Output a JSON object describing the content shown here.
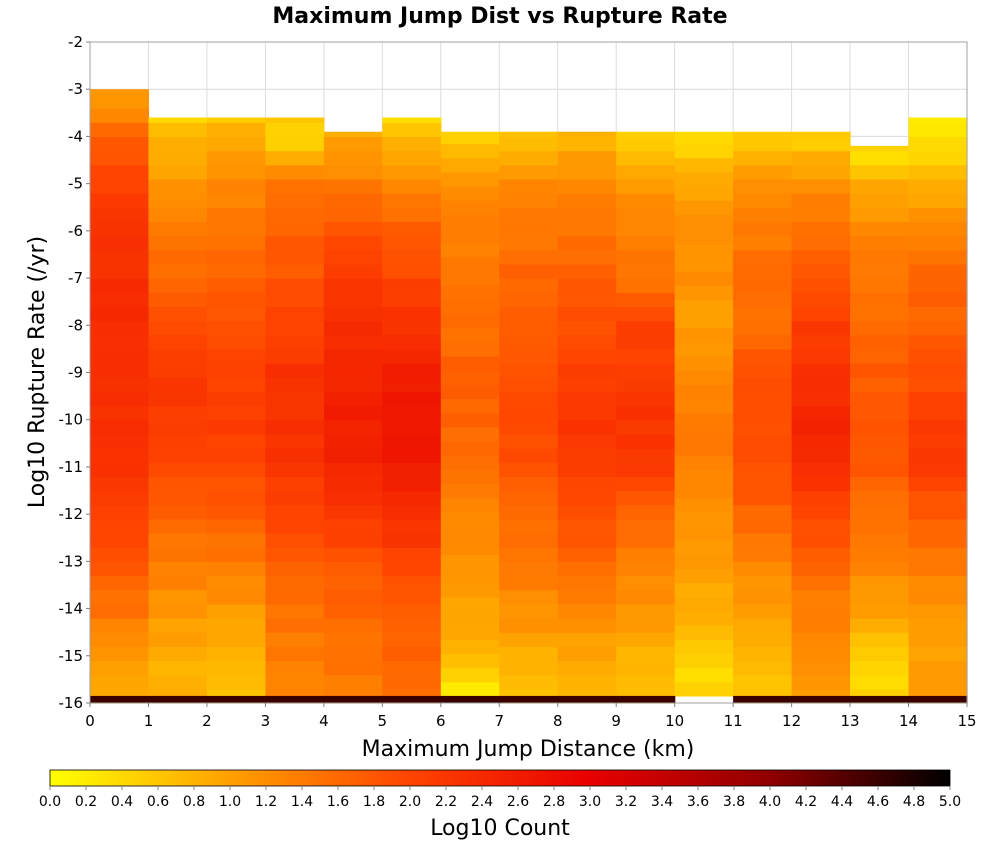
{
  "chart_data": {
    "type": "heatmap",
    "title": "Maximum Jump Dist vs Rupture Rate",
    "xlabel": "Maximum Jump Distance (km)",
    "ylabel": "Log10 Rupture Rate (/yr)",
    "xlim": [
      0,
      15
    ],
    "ylim": [
      -16,
      -2
    ],
    "x_ticks": [
      0,
      1,
      2,
      3,
      4,
      5,
      6,
      7,
      8,
      9,
      10,
      11,
      12,
      13,
      14,
      15
    ],
    "y_ticks": [
      -2,
      -3,
      -4,
      -5,
      -6,
      -7,
      -8,
      -9,
      -10,
      -11,
      -12,
      -13,
      -14,
      -15,
      -16
    ],
    "x_bin_width": 1,
    "y_bin_width": 0.3,
    "grid": true,
    "colorbar": {
      "label": "Log10 Count",
      "min": 0.0,
      "max": 5.0,
      "ticks": [
        "0.0",
        "0.2",
        "0.4",
        "0.6",
        "0.8",
        "1.0",
        "1.2",
        "1.4",
        "1.6",
        "1.8",
        "2.0",
        "2.2",
        "2.4",
        "2.6",
        "2.8",
        "3.0",
        "3.2",
        "3.4",
        "3.6",
        "3.8",
        "4.0",
        "4.2",
        "4.4",
        "4.6",
        "4.8",
        "5.0"
      ],
      "colormap": [
        "#ffff00",
        "#ffa000",
        "#ff4400",
        "#e80000",
        "#900000",
        "#000000"
      ]
    },
    "bottom_row": {
      "y_range": [
        -16,
        -15.85
      ],
      "values": [
        4.6,
        4.6,
        4.6,
        4.6,
        4.6,
        4.6,
        4.6,
        4.6,
        4.6,
        4.6,
        null,
        4.6,
        4.6,
        4.6,
        4.6
      ]
    },
    "columns": [
      {
        "x": [
          0,
          1
        ],
        "y_min": -16,
        "y_max": -3,
        "anchors": [
          [
            -15.5,
            1.0
          ],
          [
            -14,
            1.5
          ],
          [
            -12,
            2.1
          ],
          [
            -10,
            2.3
          ],
          [
            -8,
            2.35
          ],
          [
            -6,
            2.25
          ],
          [
            -5,
            2.05
          ],
          [
            -4,
            1.7
          ],
          [
            -3.3,
            1.1
          ]
        ]
      },
      {
        "x": [
          1,
          2
        ],
        "y_min": -16,
        "y_max": -3.6,
        "anchors": [
          [
            -15.5,
            0.8
          ],
          [
            -14,
            1.1
          ],
          [
            -13,
            1.4
          ],
          [
            -12,
            1.7
          ],
          [
            -11,
            2.0
          ],
          [
            -10,
            2.15
          ],
          [
            -9,
            2.15
          ],
          [
            -8,
            1.95
          ],
          [
            -7,
            1.6
          ],
          [
            -6,
            1.4
          ],
          [
            -5,
            1.1
          ],
          [
            -4,
            0.8
          ],
          [
            -3.6,
            0.4
          ]
        ]
      },
      {
        "x": [
          2,
          3
        ],
        "y_min": -16,
        "y_max": -3.6,
        "anchors": [
          [
            -15.5,
            0.7
          ],
          [
            -14,
            1.1
          ],
          [
            -13,
            1.4
          ],
          [
            -12,
            1.7
          ],
          [
            -11,
            1.95
          ],
          [
            -10,
            2.1
          ],
          [
            -9,
            2.0
          ],
          [
            -8,
            1.85
          ],
          [
            -7,
            1.7
          ],
          [
            -6,
            1.5
          ],
          [
            -5,
            1.3
          ],
          [
            -4,
            0.9
          ],
          [
            -3.6,
            0.5
          ]
        ]
      },
      {
        "x": [
          3,
          4
        ],
        "y_min": -16,
        "y_max": -3.6,
        "anchors": [
          [
            -15.5,
            1.3
          ],
          [
            -14,
            1.55
          ],
          [
            -13,
            1.7
          ],
          [
            -12,
            2.0
          ],
          [
            -11,
            2.2
          ],
          [
            -10,
            2.3
          ],
          [
            -9,
            2.25
          ],
          [
            -8,
            2.05
          ],
          [
            -7,
            1.8
          ],
          [
            -6,
            1.7
          ],
          [
            -5,
            1.4
          ],
          [
            -4,
            0.4
          ],
          [
            -3.6,
            0.6
          ]
        ]
      },
      {
        "x": [
          4,
          5
        ],
        "y_min": -16,
        "y_max": -3.9,
        "anchors": [
          [
            -15.5,
            1.4
          ],
          [
            -14,
            1.65
          ],
          [
            -13,
            1.85
          ],
          [
            -12,
            2.2
          ],
          [
            -11,
            2.45
          ],
          [
            -10,
            2.55
          ],
          [
            -9,
            2.5
          ],
          [
            -8,
            2.3
          ],
          [
            -7,
            2.15
          ],
          [
            -6,
            1.85
          ],
          [
            -5,
            1.4
          ],
          [
            -4,
            0.9
          ]
        ]
      },
      {
        "x": [
          5,
          6
        ],
        "y_min": -16,
        "y_max": -3.6,
        "anchors": [
          [
            -15.5,
            1.55
          ],
          [
            -14,
            1.8
          ],
          [
            -13,
            2.0
          ],
          [
            -12,
            2.35
          ],
          [
            -11,
            2.55
          ],
          [
            -10,
            2.75
          ],
          [
            -9,
            2.6
          ],
          [
            -8,
            2.3
          ],
          [
            -7,
            2.0
          ],
          [
            -6,
            1.7
          ],
          [
            -5,
            1.3
          ],
          [
            -4,
            0.7
          ],
          [
            -3.6,
            0.2
          ]
        ]
      },
      {
        "x": [
          6,
          7
        ],
        "y_min": -15.85,
        "y_max": -3.9,
        "anchors": [
          [
            -15.7,
            0.2
          ],
          [
            -15,
            0.75
          ],
          [
            -14,
            0.95
          ],
          [
            -13,
            1.15
          ],
          [
            -12,
            1.3
          ],
          [
            -11,
            1.5
          ],
          [
            -10,
            1.65
          ],
          [
            -9,
            1.7
          ],
          [
            -8,
            1.55
          ],
          [
            -7,
            1.45
          ],
          [
            -6,
            1.4
          ],
          [
            -5,
            1.15
          ],
          [
            -4.5,
            0.8
          ],
          [
            -4,
            0.4
          ]
        ]
      },
      {
        "x": [
          7,
          8
        ],
        "y_min": -16,
        "y_max": -3.9,
        "anchors": [
          [
            -15.5,
            0.7
          ],
          [
            -14,
            1.2
          ],
          [
            -13,
            1.45
          ],
          [
            -12,
            1.65
          ],
          [
            -11,
            1.85
          ],
          [
            -10,
            2.0
          ],
          [
            -9,
            1.9
          ],
          [
            -8,
            1.75
          ],
          [
            -7,
            1.65
          ],
          [
            -6,
            1.45
          ],
          [
            -5,
            1.2
          ],
          [
            -4,
            0.6
          ]
        ]
      },
      {
        "x": [
          8,
          9
        ],
        "y_min": -16,
        "y_max": -3.9,
        "anchors": [
          [
            -15.5,
            0.8
          ],
          [
            -14,
            1.25
          ],
          [
            -13,
            1.6
          ],
          [
            -12,
            1.9
          ],
          [
            -11,
            2.15
          ],
          [
            -10,
            2.2
          ],
          [
            -9,
            2.1
          ],
          [
            -8,
            1.9
          ],
          [
            -7,
            1.75
          ],
          [
            -6,
            1.45
          ],
          [
            -5,
            1.25
          ],
          [
            -4,
            0.8
          ]
        ]
      },
      {
        "x": [
          9,
          10
        ],
        "y_min": -16,
        "y_max": -3.9,
        "anchors": [
          [
            -15.5,
            0.7
          ],
          [
            -14,
            1.1
          ],
          [
            -13,
            1.4
          ],
          [
            -12,
            1.7
          ],
          [
            -11,
            2.1
          ],
          [
            -10,
            2.25
          ],
          [
            -9,
            2.1
          ],
          [
            -8,
            2.05
          ],
          [
            -7,
            1.5
          ],
          [
            -6,
            1.3
          ],
          [
            -5,
            1.1
          ],
          [
            -4,
            0.5
          ]
        ]
      },
      {
        "x": [
          10,
          11
        ],
        "y_min": -15.85,
        "y_max": -3.9,
        "anchors": [
          [
            -15.5,
            0.4
          ],
          [
            -14.5,
            0.7
          ],
          [
            -14,
            0.85
          ],
          [
            -13,
            1.05
          ],
          [
            -12,
            1.2
          ],
          [
            -11,
            1.35
          ],
          [
            -10,
            1.4
          ],
          [
            -9,
            1.3
          ],
          [
            -8,
            1.05
          ],
          [
            -7,
            1.15
          ],
          [
            -6,
            1.2
          ],
          [
            -5,
            0.95
          ],
          [
            -4.5,
            0.6
          ],
          [
            -4,
            0.3
          ]
        ]
      },
      {
        "x": [
          11,
          12
        ],
        "y_min": -16,
        "y_max": -3.9,
        "anchors": [
          [
            -15.5,
            0.6
          ],
          [
            -14,
            1.0
          ],
          [
            -13,
            1.3
          ],
          [
            -12,
            1.65
          ],
          [
            -11,
            1.9
          ],
          [
            -10,
            1.95
          ],
          [
            -9,
            1.8
          ],
          [
            -8,
            1.6
          ],
          [
            -7,
            1.55
          ],
          [
            -6,
            1.4
          ],
          [
            -5,
            1.2
          ],
          [
            -4,
            0.5
          ]
        ]
      },
      {
        "x": [
          12,
          13
        ],
        "y_min": -16,
        "y_max": -3.9,
        "anchors": [
          [
            -15.5,
            1.1
          ],
          [
            -14,
            1.35
          ],
          [
            -13,
            1.65
          ],
          [
            -12,
            2.05
          ],
          [
            -11,
            2.35
          ],
          [
            -10,
            2.45
          ],
          [
            -9,
            2.3
          ],
          [
            -8,
            2.1
          ],
          [
            -7,
            1.75
          ],
          [
            -6,
            1.55
          ],
          [
            -5,
            1.2
          ],
          [
            -4,
            0.5
          ]
        ]
      },
      {
        "x": [
          13,
          14
        ],
        "y_min": -16,
        "y_max": -4.2,
        "anchors": [
          [
            -15.5,
            0.4
          ],
          [
            -14,
            1.0
          ],
          [
            -13,
            1.3
          ],
          [
            -12,
            1.55
          ],
          [
            -11,
            1.75
          ],
          [
            -10,
            1.85
          ],
          [
            -9,
            1.75
          ],
          [
            -8,
            1.55
          ],
          [
            -7,
            1.45
          ],
          [
            -6,
            1.25
          ],
          [
            -5,
            0.9
          ],
          [
            -4.5,
            0.4
          ]
        ]
      },
      {
        "x": [
          14,
          15
        ],
        "y_min": -16,
        "y_max": -3.6,
        "anchors": [
          [
            -15.5,
            1.0
          ],
          [
            -14,
            1.1
          ],
          [
            -13,
            1.4
          ],
          [
            -12,
            1.8
          ],
          [
            -11,
            2.1
          ],
          [
            -10,
            2.15
          ],
          [
            -9,
            1.9
          ],
          [
            -8,
            1.65
          ],
          [
            -7,
            1.7
          ],
          [
            -6,
            1.35
          ],
          [
            -5,
            0.8
          ],
          [
            -4,
            0.25
          ]
        ]
      }
    ]
  }
}
